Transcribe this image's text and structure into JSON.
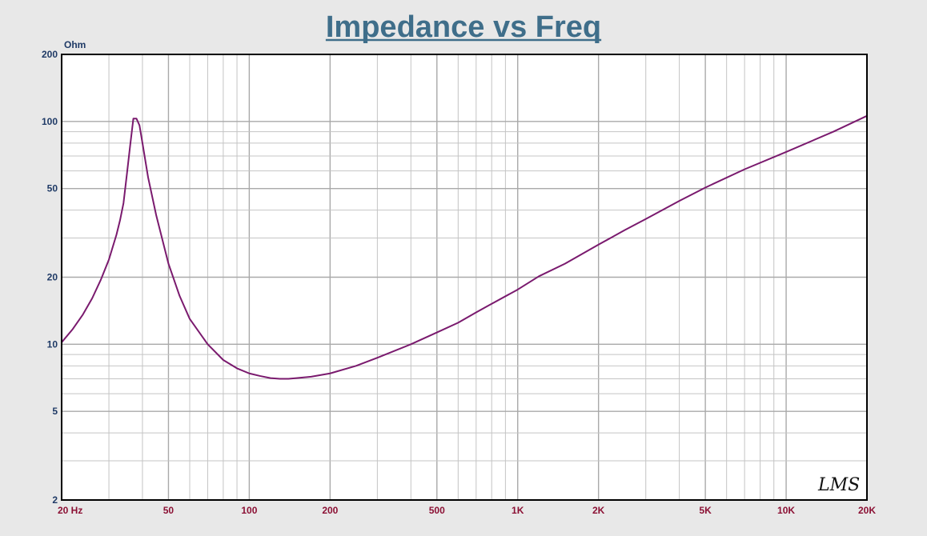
{
  "chart_data": {
    "type": "line",
    "title": "Impedance vs Freq",
    "ylabel": "Ohm",
    "xlabel": "",
    "xscale": "log",
    "yscale": "log",
    "xlim": [
      20,
      20000
    ],
    "ylim": [
      2,
      200
    ],
    "grid": true,
    "x_tick_labels": [
      {
        "value": 20,
        "label": "20  Hz"
      },
      {
        "value": 50,
        "label": "50"
      },
      {
        "value": 100,
        "label": "100"
      },
      {
        "value": 200,
        "label": "200"
      },
      {
        "value": 500,
        "label": "500"
      },
      {
        "value": 1000,
        "label": "1K"
      },
      {
        "value": 2000,
        "label": "2K"
      },
      {
        "value": 5000,
        "label": "5K"
      },
      {
        "value": 10000,
        "label": "10K"
      },
      {
        "value": 20000,
        "label": "20K"
      }
    ],
    "y_tick_labels": [
      {
        "value": 200,
        "label": "200"
      },
      {
        "value": 100,
        "label": "100"
      },
      {
        "value": 50,
        "label": "50"
      },
      {
        "value": 20,
        "label": "20"
      },
      {
        "value": 10,
        "label": "10"
      },
      {
        "value": 5,
        "label": "5"
      },
      {
        "value": 2,
        "label": "2"
      }
    ],
    "series": [
      {
        "color": "#7a1a6e",
        "x": [
          20,
          22,
          24,
          26,
          28,
          30,
          32,
          33,
          34,
          35,
          36,
          37,
          38,
          39,
          40,
          42,
          45,
          50,
          55,
          60,
          70,
          80,
          90,
          100,
          110,
          120,
          130,
          140,
          150,
          170,
          200,
          250,
          300,
          400,
          500,
          600,
          700,
          800,
          1000,
          1200,
          1500,
          2000,
          2500,
          3000,
          4000,
          5000,
          7000,
          10000,
          15000,
          20000
        ],
        "values": [
          10.2,
          11.7,
          13.6,
          16.1,
          19.5,
          24.0,
          31.0,
          36.0,
          43.0,
          58.0,
          78.0,
          103.0,
          103.0,
          96.0,
          80.0,
          56.0,
          38.0,
          23.0,
          16.5,
          13.0,
          10.0,
          8.5,
          7.8,
          7.4,
          7.2,
          7.05,
          7.0,
          7.0,
          7.05,
          7.15,
          7.4,
          8.0,
          8.7,
          10.0,
          11.3,
          12.5,
          13.9,
          15.2,
          17.6,
          20.2,
          23.0,
          28.0,
          32.5,
          36.5,
          44.0,
          50.5,
          61.0,
          73.0,
          90.0,
          106.0
        ]
      }
    ]
  },
  "watermark": "LMS"
}
